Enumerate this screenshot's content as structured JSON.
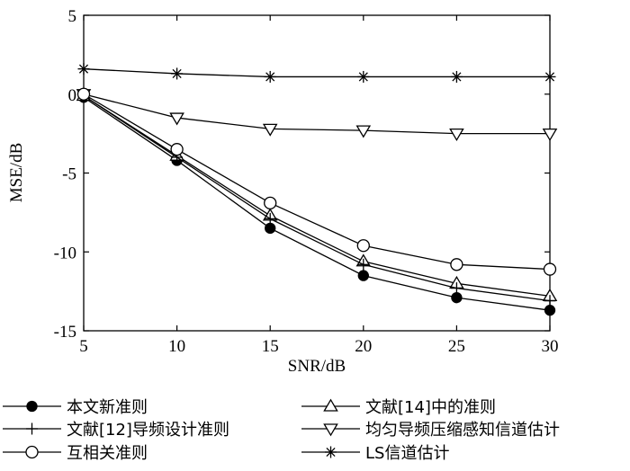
{
  "chart_data": {
    "type": "line",
    "xlabel": "SNR/dB",
    "ylabel": "MSE/dB",
    "xlim": [
      5,
      30
    ],
    "ylim": [
      -15,
      5
    ],
    "x_ticks": [
      "5",
      "10",
      "15",
      "20",
      "25",
      "30"
    ],
    "y_ticks": [
      "5",
      "0",
      "-5",
      "-10",
      "-15"
    ],
    "grid": false,
    "legend_position": "bottom, below plot, two columns",
    "x": [
      5,
      10,
      15,
      20,
      25,
      30
    ],
    "series": [
      {
        "name": "本文新准则",
        "marker": "filled-circle",
        "values": [
          -0.2,
          -4.2,
          -8.5,
          -11.5,
          -12.9,
          -13.7
        ]
      },
      {
        "name": "文献[14]中的准则",
        "marker": "triangle-up",
        "values": [
          -0.1,
          -3.9,
          -7.7,
          -10.6,
          -12.0,
          -12.8
        ]
      },
      {
        "name": "文献[12]导频设计准则",
        "marker": "plus",
        "values": [
          -0.1,
          -4.0,
          -7.9,
          -10.8,
          -12.3,
          -13.1
        ]
      },
      {
        "name": "均匀导频压缩感知信道估计",
        "marker": "triangle-down",
        "values": [
          0.0,
          -1.5,
          -2.2,
          -2.3,
          -2.5,
          -2.5
        ]
      },
      {
        "name": "互相关准则",
        "marker": "circle",
        "values": [
          0.0,
          -3.5,
          -6.9,
          -9.6,
          -10.8,
          -11.1
        ]
      },
      {
        "name": "LS信道估计",
        "marker": "asterisk",
        "values": [
          1.6,
          1.3,
          1.1,
          1.1,
          1.1,
          1.1
        ]
      }
    ],
    "legend_order": [
      0,
      1,
      2,
      3,
      4,
      5
    ]
  }
}
